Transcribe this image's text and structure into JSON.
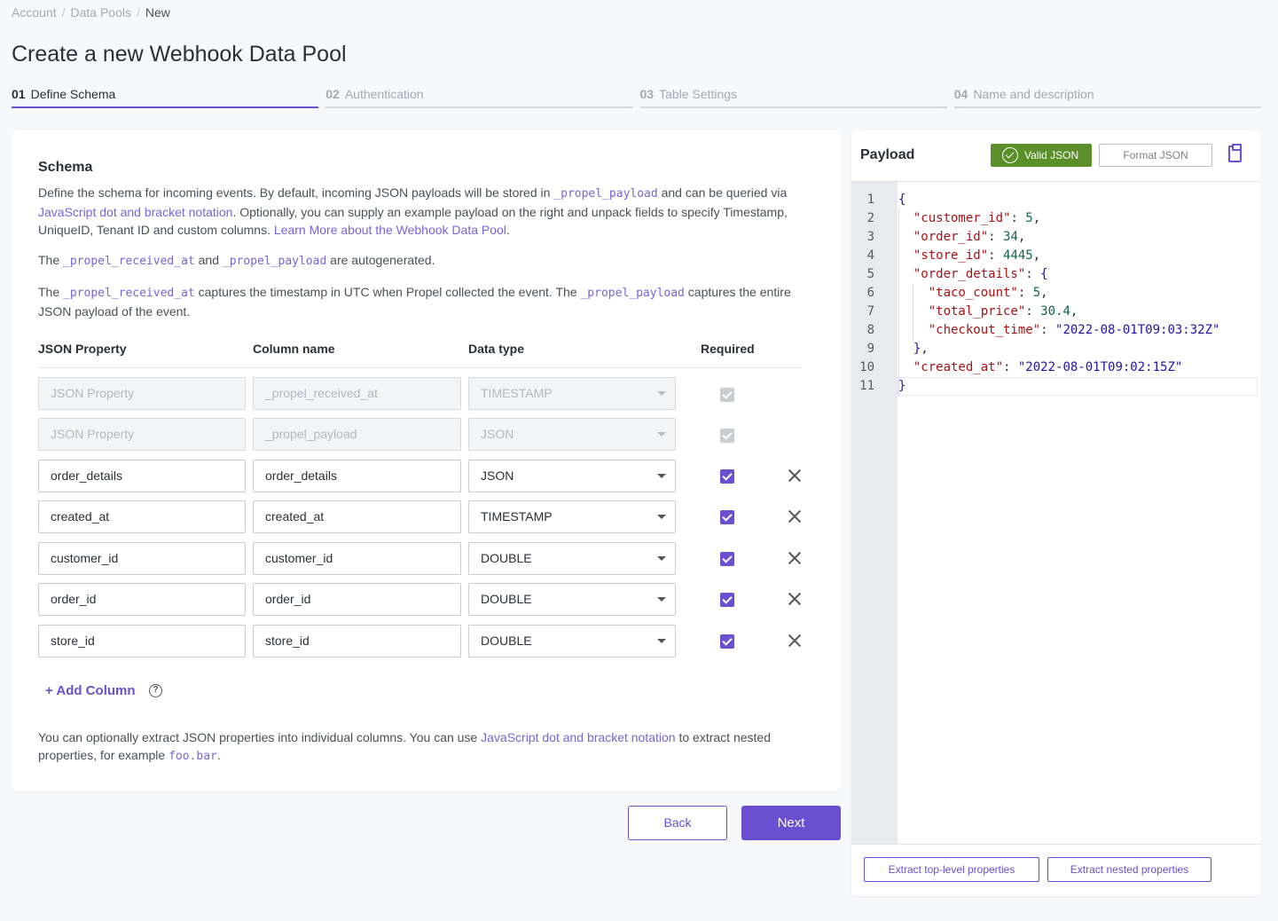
{
  "breadcrumb": {
    "items": [
      "Account",
      "Data Pools",
      "New"
    ]
  },
  "page_title": "Create a new Webhook Data Pool",
  "steps": [
    {
      "num": "01",
      "label": "Define Schema",
      "active": true
    },
    {
      "num": "02",
      "label": "Authentication",
      "active": false
    },
    {
      "num": "03",
      "label": "Table Settings",
      "active": false
    },
    {
      "num": "04",
      "label": "Name and description",
      "active": false
    }
  ],
  "schema": {
    "title": "Schema",
    "intro_1": "Define the schema for incoming events. By default, incoming JSON payloads will be stored in ",
    "intro_code": "_propel_payload",
    "intro_2": " and can be queried via ",
    "intro_link_1": "JavaScript dot and bracket notation",
    "intro_3": ". Optionally, you can supply an example payload on the right and unpack fields to specify Timestamp, UniqueID, Tenant ID and custom columns. ",
    "intro_link_2": "Learn More about the Webhook Data Pool",
    "intro_4": ".",
    "auto_1": "The ",
    "auto_code_1": "_propel_received_at",
    "auto_2": " and ",
    "auto_code_2": "_propel_payload",
    "auto_3": " are autogenerated.",
    "capt_1": "The ",
    "capt_code_1": "_propel_received_at",
    "capt_2": " captures the timestamp in UTC when Propel collected the event. The ",
    "capt_code_2": "_propel_payload",
    "capt_3": " captures the entire JSON payload of the event.",
    "headers": {
      "json_property": "JSON Property",
      "column_name": "Column name",
      "data_type": "Data type",
      "required": "Required"
    },
    "rows": [
      {
        "json_property": "",
        "json_placeholder": "JSON Property",
        "column_name": "_propel_received_at",
        "data_type": "TIMESTAMP",
        "disabled": true
      },
      {
        "json_property": "",
        "json_placeholder": "JSON Property",
        "column_name": "_propel_payload",
        "data_type": "JSON",
        "disabled": true
      },
      {
        "json_property": "order_details",
        "column_name": "order_details",
        "data_type": "JSON",
        "disabled": false
      },
      {
        "json_property": "created_at",
        "column_name": "created_at",
        "data_type": "TIMESTAMP",
        "disabled": false
      },
      {
        "json_property": "customer_id",
        "column_name": "customer_id",
        "data_type": "DOUBLE",
        "disabled": false
      },
      {
        "json_property": "order_id",
        "column_name": "order_id",
        "data_type": "DOUBLE",
        "disabled": false
      },
      {
        "json_property": "store_id",
        "column_name": "store_id",
        "data_type": "DOUBLE",
        "disabled": false
      }
    ],
    "add_column": "+ Add Column",
    "help_glyph": "?",
    "footer_1": "You can optionally extract JSON properties into individual columns. You can use ",
    "footer_link": "JavaScript dot and bracket notation",
    "footer_2": " to extract nested properties, for example ",
    "footer_code": "foo.bar",
    "footer_3": "."
  },
  "buttons": {
    "back": "Back",
    "next": "Next"
  },
  "payload": {
    "title": "Payload",
    "valid_label": "Valid JSON",
    "format_label": "Format JSON",
    "lines": [
      "{",
      "  \"customer_id\": 5,",
      "  \"order_id\": 34,",
      "  \"store_id\": 4445,",
      "  \"order_details\": {",
      "    \"taco_count\": 5,",
      "    \"total_price\": 30.4,",
      "    \"checkout_time\": \"2022-08-01T09:03:32Z\"",
      "  },",
      "  \"created_at\": \"2022-08-01T09:02:15Z\"",
      "}"
    ],
    "extract_top": "Extract top-level properties",
    "extract_nested": "Extract nested properties"
  },
  "colors": {
    "accent": "#6b4fd0",
    "valid": "#5a8f29"
  }
}
